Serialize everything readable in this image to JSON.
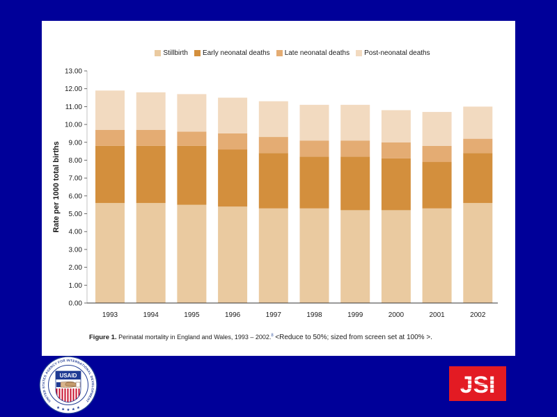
{
  "slide": {
    "background_color": "#000099",
    "panel_color": "#ffffff"
  },
  "chart_data": {
    "type": "bar",
    "stacked": true,
    "title": "",
    "xlabel": "",
    "ylabel": "Rate per 1000 total births",
    "ylim": [
      0,
      13
    ],
    "yticks": [
      "0.00",
      "1.00",
      "2.00",
      "3.00",
      "4.00",
      "5.00",
      "6.00",
      "7.00",
      "8.00",
      "9.00",
      "10.00",
      "11.00",
      "12.00",
      "13.00"
    ],
    "grid": false,
    "legend_position": "top",
    "categories": [
      "1993",
      "1994",
      "1995",
      "1996",
      "1997",
      "1998",
      "1999",
      "2000",
      "2001",
      "2002"
    ],
    "series": [
      {
        "name": "Stillbirth",
        "color": "#eacaa0",
        "values": [
          5.6,
          5.6,
          5.5,
          5.4,
          5.3,
          5.3,
          5.2,
          5.2,
          5.3,
          5.6
        ]
      },
      {
        "name": "Early neonatal deaths",
        "color": "#d38f3d",
        "values": [
          3.2,
          3.2,
          3.3,
          3.2,
          3.1,
          2.9,
          3.0,
          2.9,
          2.6,
          2.8
        ]
      },
      {
        "name": "Late neonatal deaths",
        "color": "#e4ac73",
        "values": [
          0.9,
          0.9,
          0.8,
          0.9,
          0.9,
          0.9,
          0.9,
          0.9,
          0.9,
          0.8
        ]
      },
      {
        "name": "Post-neonatal deaths",
        "color": "#f2dac0",
        "values": [
          2.2,
          2.1,
          2.1,
          2.0,
          2.0,
          2.0,
          2.0,
          1.8,
          1.9,
          1.8
        ]
      }
    ],
    "caption": {
      "label": "Figure 1.",
      "title": "Perinatal mortality in England and Wales, 1993 – 2002.",
      "reference": "8",
      "note": "<Reduce to 50%; sized from screen set at 100% >."
    }
  },
  "logos": {
    "usaid": {
      "ring_text": "UNITED STATES AGENCY FOR INTERNATIONAL DEVELOPMENT",
      "shield_text": "USAID"
    },
    "jsi": {
      "text": "JSI",
      "color": "#e31b23"
    }
  }
}
